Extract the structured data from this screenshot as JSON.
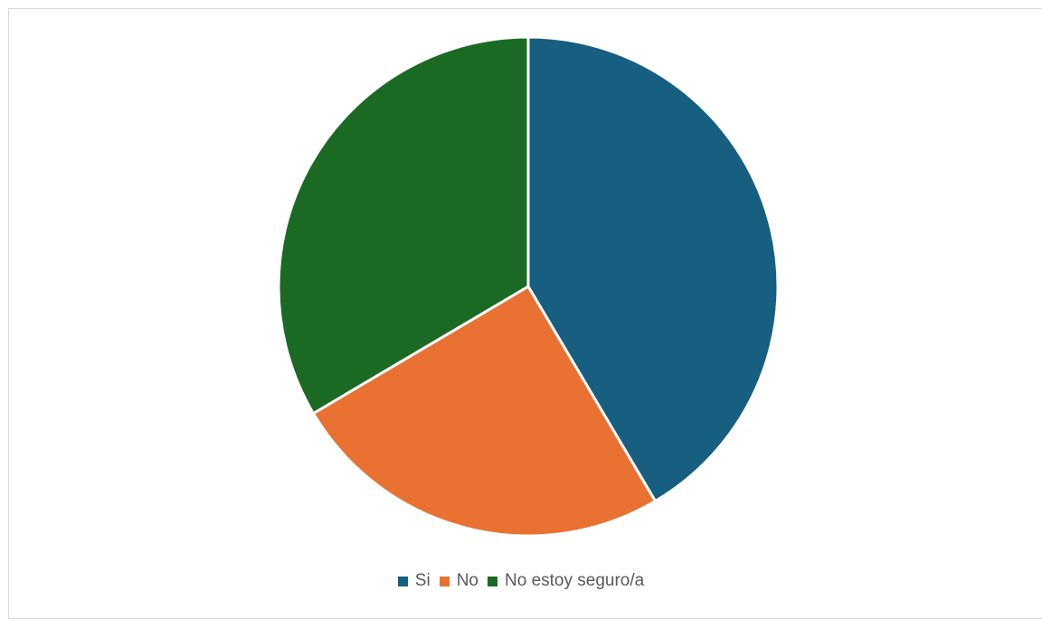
{
  "chart_data": {
    "type": "pie",
    "categories": [
      "Si",
      "No",
      "No estoy seguro/a"
    ],
    "values": [
      41.5,
      25.0,
      33.5
    ],
    "colors": [
      "#175F80",
      "#E97132",
      "#1B6A24"
    ],
    "legend_position": "bottom",
    "title": ""
  }
}
